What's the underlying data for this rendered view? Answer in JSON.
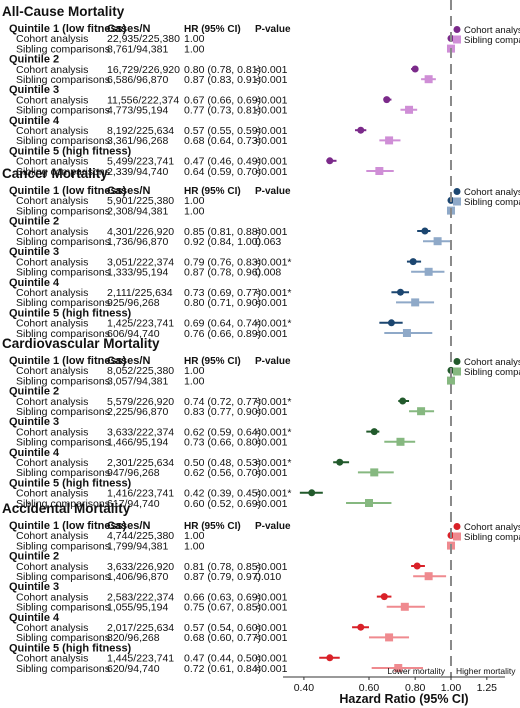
{
  "column_headers": {
    "cases": "Cases/N",
    "hr": "HR (95% CI)",
    "p": "P-value"
  },
  "legend": {
    "cohort": "Cohort analysis",
    "sibling": "Sibling comparisons"
  },
  "axis": {
    "title": "Hazard Ratio (95% CI)",
    "ticks": [
      "0.40",
      "0.60",
      "0.80",
      "1.00",
      "1.25"
    ],
    "tick_values": [
      0.4,
      0.6,
      0.8,
      1.0,
      1.25
    ],
    "xlim": [
      0.36,
      1.4
    ],
    "scale": "log",
    "left_note": "Lower mortality",
    "right_note": "Higher mortality",
    "reference_value": 1.0
  },
  "colors": {
    "All-Cause Mortality": {
      "cohort": "#7b2a8a",
      "sibling": "#cf8ed6"
    },
    "Cancer Mortality": {
      "cohort": "#1c4670",
      "sibling": "#8fa9c8"
    },
    "Cardiovascular Mortality": {
      "cohort": "#225a2c",
      "sibling": "#86b880"
    },
    "Accidental Mortality": {
      "cohort": "#d92128",
      "sibling": "#ef8a8f"
    },
    "reference_line": "#8a8a8a"
  },
  "chart_data": {
    "type": "forest",
    "xlabel": "Hazard Ratio (95% CI)",
    "panels": [
      {
        "title": "All-Cause Mortality",
        "quintiles": [
          {
            "label": "Quintile 1 (low fitness)",
            "rows": [
              {
                "analysis": "Cohort analysis",
                "cases": "22,935/225,380",
                "hr_text": "1.00",
                "p": "",
                "hr": 1.0,
                "lo": null,
                "hi": null
              },
              {
                "analysis": "Sibling comparisons",
                "cases": "8,761/94,381",
                "hr_text": "1.00",
                "p": "",
                "hr": 1.0,
                "lo": null,
                "hi": null
              }
            ]
          },
          {
            "label": "Quintile 2",
            "rows": [
              {
                "analysis": "Cohort analysis",
                "cases": "16,729/226,920",
                "hr_text": "0.80 (0.78, 0.81)",
                "p": "<0.001",
                "hr": 0.8,
                "lo": 0.78,
                "hi": 0.81
              },
              {
                "analysis": "Sibling comparisons",
                "cases": "6,586/96,870",
                "hr_text": "0.87 (0.83, 0.91)",
                "p": "<0.001",
                "hr": 0.87,
                "lo": 0.83,
                "hi": 0.91
              }
            ]
          },
          {
            "label": "Quintile 3",
            "rows": [
              {
                "analysis": "Cohort analysis",
                "cases": "11,556/222,374",
                "hr_text": "0.67 (0.66, 0.69)",
                "p": "<0.001",
                "hr": 0.67,
                "lo": 0.66,
                "hi": 0.69
              },
              {
                "analysis": "Sibling comparisons",
                "cases": "4,773/95,194",
                "hr_text": "0.77 (0.73, 0.81)",
                "p": "<0.001",
                "hr": 0.77,
                "lo": 0.73,
                "hi": 0.81
              }
            ]
          },
          {
            "label": "Quintile 4",
            "rows": [
              {
                "analysis": "Cohort analysis",
                "cases": "8,192/225,634",
                "hr_text": "0.57 (0.55, 0.59)",
                "p": "<0.001",
                "hr": 0.57,
                "lo": 0.55,
                "hi": 0.59
              },
              {
                "analysis": "Sibling comparisons",
                "cases": "3,361/96,268",
                "hr_text": "0.68 (0.64, 0.73)",
                "p": "<0.001",
                "hr": 0.68,
                "lo": 0.64,
                "hi": 0.73
              }
            ]
          },
          {
            "label": "Quintile 5  (high fitness)",
            "rows": [
              {
                "analysis": "Cohort analysis",
                "cases": "5,499/223,741",
                "hr_text": "0.47 (0.46, 0.49)",
                "p": "<0.001",
                "hr": 0.47,
                "lo": 0.46,
                "hi": 0.49
              },
              {
                "analysis": "Sibling comparisons",
                "cases": "2,339/94,740",
                "hr_text": "0.64 (0.59, 0.70)",
                "p": "<0.001",
                "hr": 0.64,
                "lo": 0.59,
                "hi": 0.7
              }
            ]
          }
        ]
      },
      {
        "title": "Cancer Mortality",
        "quintiles": [
          {
            "label": "Quintile 1 (low fitness)",
            "rows": [
              {
                "analysis": "Cohort analysis",
                "cases": "5,901/225,380",
                "hr_text": "1.00",
                "p": "",
                "hr": 1.0,
                "lo": null,
                "hi": null
              },
              {
                "analysis": "Sibling comparisons",
                "cases": "2,308/94,381",
                "hr_text": "1.00",
                "p": "",
                "hr": 1.0,
                "lo": null,
                "hi": null
              }
            ]
          },
          {
            "label": "Quintile 2",
            "rows": [
              {
                "analysis": "Cohort analysis",
                "cases": "4,301/226,920",
                "hr_text": "0.85 (0.81, 0.88)",
                "p": "<0.001",
                "hr": 0.85,
                "lo": 0.81,
                "hi": 0.88
              },
              {
                "analysis": "Sibling comparisons",
                "cases": "1,736/96,870",
                "hr_text": "0.92 (0.84, 1.00)",
                "p": "0.063",
                "hr": 0.92,
                "lo": 0.84,
                "hi": 1.0
              }
            ]
          },
          {
            "label": "Quintile 3",
            "rows": [
              {
                "analysis": "Cohort analysis",
                "cases": "3,051/222,374",
                "hr_text": "0.79 (0.76, 0.83)",
                "p": "<0.001*",
                "hr": 0.79,
                "lo": 0.76,
                "hi": 0.83
              },
              {
                "analysis": "Sibling comparisons",
                "cases": "1,333/95,194",
                "hr_text": "0.87 (0.78, 0.96)",
                "p": "0.008",
                "hr": 0.87,
                "lo": 0.78,
                "hi": 0.96
              }
            ]
          },
          {
            "label": "Quintile 4",
            "rows": [
              {
                "analysis": "Cohort analysis",
                "cases": "2,111/225,634",
                "hr_text": "0.73 (0.69, 0.77)",
                "p": "<0.001*",
                "hr": 0.73,
                "lo": 0.69,
                "hi": 0.77
              },
              {
                "analysis": "Sibling comparisons",
                "cases": "925/96,268",
                "hr_text": "0.80 (0.71, 0.90)",
                "p": "<0.001",
                "hr": 0.8,
                "lo": 0.71,
                "hi": 0.9
              }
            ]
          },
          {
            "label": "Quintile 5  (high fitness)",
            "rows": [
              {
                "analysis": "Cohort analysis",
                "cases": "1,425/223,741",
                "hr_text": "0.69 (0.64, 0.74)",
                "p": "<0.001*",
                "hr": 0.69,
                "lo": 0.64,
                "hi": 0.74
              },
              {
                "analysis": "Sibling comparisons",
                "cases": "606/94,740",
                "hr_text": "0.76 (0.66, 0.89)",
                "p": "<0.001",
                "hr": 0.76,
                "lo": 0.66,
                "hi": 0.89
              }
            ]
          }
        ]
      },
      {
        "title": "Cardiovascular Mortality",
        "quintiles": [
          {
            "label": "Quintile 1 (low fitness)",
            "rows": [
              {
                "analysis": "Cohort analysis",
                "cases": "8,052/225,380",
                "hr_text": "1.00",
                "p": "",
                "hr": 1.0,
                "lo": null,
                "hi": null
              },
              {
                "analysis": "Sibling comparisons",
                "cases": "3,057/94,381",
                "hr_text": "1.00",
                "p": "",
                "hr": 1.0,
                "lo": null,
                "hi": null
              }
            ]
          },
          {
            "label": "Quintile 2",
            "rows": [
              {
                "analysis": "Cohort analysis",
                "cases": "5,579/226,920",
                "hr_text": "0.74 (0.72, 0.77)",
                "p": "<0.001*",
                "hr": 0.74,
                "lo": 0.72,
                "hi": 0.77
              },
              {
                "analysis": "Sibling comparisons",
                "cases": "2,225/96,870",
                "hr_text": "0.83 (0.77, 0.90)",
                "p": "<0.001",
                "hr": 0.83,
                "lo": 0.77,
                "hi": 0.9
              }
            ]
          },
          {
            "label": "Quintile 3",
            "rows": [
              {
                "analysis": "Cohort analysis",
                "cases": "3,633/222,374",
                "hr_text": "0.62 (0.59, 0.64)",
                "p": "<0.001*",
                "hr": 0.62,
                "lo": 0.59,
                "hi": 0.64
              },
              {
                "analysis": "Sibling comparisons",
                "cases": "1,466/95,194",
                "hr_text": "0.73 (0.66, 0.80)",
                "p": "<0.001",
                "hr": 0.73,
                "lo": 0.66,
                "hi": 0.8
              }
            ]
          },
          {
            "label": "Quintile 4",
            "rows": [
              {
                "analysis": "Cohort analysis",
                "cases": "2,301/225,634",
                "hr_text": "0.50 (0.48, 0.53)",
                "p": "<0.001*",
                "hr": 0.5,
                "lo": 0.48,
                "hi": 0.53
              },
              {
                "analysis": "Sibling comparisons",
                "cases": "947/96,268",
                "hr_text": "0.62 (0.56, 0.70)",
                "p": "<0.001",
                "hr": 0.62,
                "lo": 0.56,
                "hi": 0.7
              }
            ]
          },
          {
            "label": "Quintile 5  (high fitness)",
            "rows": [
              {
                "analysis": "Cohort analysis",
                "cases": "1,416/223,741",
                "hr_text": "0.42 (0.39, 0.45)",
                "p": "<0.001*",
                "hr": 0.42,
                "lo": 0.39,
                "hi": 0.45
              },
              {
                "analysis": "Sibling comparisons",
                "cases": "617/94,740",
                "hr_text": "0.60 (0.52, 0.69)",
                "p": "<0.001",
                "hr": 0.6,
                "lo": 0.52,
                "hi": 0.69
              }
            ]
          }
        ]
      },
      {
        "title": "Accidental Mortality",
        "quintiles": [
          {
            "label": "Quintile 1 (low fitness)",
            "rows": [
              {
                "analysis": "Cohort analysis",
                "cases": "4,744/225,380",
                "hr_text": "1.00",
                "p": "",
                "hr": 1.0,
                "lo": null,
                "hi": null
              },
              {
                "analysis": "Sibling comparisons",
                "cases": "1,799/94,381",
                "hr_text": "1.00",
                "p": "",
                "hr": 1.0,
                "lo": null,
                "hi": null
              }
            ]
          },
          {
            "label": "Quintile 2",
            "rows": [
              {
                "analysis": "Cohort analysis",
                "cases": "3,633/226,920",
                "hr_text": "0.81 (0.78, 0.85)",
                "p": "<0.001",
                "hr": 0.81,
                "lo": 0.78,
                "hi": 0.85
              },
              {
                "analysis": "Sibling comparisons",
                "cases": "1,406/96,870",
                "hr_text": "0.87 (0.79, 0.97)",
                "p": "0.010",
                "hr": 0.87,
                "lo": 0.79,
                "hi": 0.97
              }
            ]
          },
          {
            "label": "Quintile 3",
            "rows": [
              {
                "analysis": "Cohort analysis",
                "cases": "2,583/222,374",
                "hr_text": "0.66 (0.63, 0.69)",
                "p": "<0.001",
                "hr": 0.66,
                "lo": 0.63,
                "hi": 0.69
              },
              {
                "analysis": "Sibling comparisons",
                "cases": "1,055/95,194",
                "hr_text": "0.75 (0.67, 0.85)",
                "p": "<0.001",
                "hr": 0.75,
                "lo": 0.67,
                "hi": 0.85
              }
            ]
          },
          {
            "label": "Quintile 4",
            "rows": [
              {
                "analysis": "Cohort analysis",
                "cases": "2,017/225,634",
                "hr_text": "0.57 (0.54, 0.60)",
                "p": "<0.001",
                "hr": 0.57,
                "lo": 0.54,
                "hi": 0.6
              },
              {
                "analysis": "Sibling comparisons",
                "cases": "820/96,268",
                "hr_text": "0.68 (0.60, 0.77)",
                "p": "<0.001",
                "hr": 0.68,
                "lo": 0.6,
                "hi": 0.77
              }
            ]
          },
          {
            "label": "Quintile 5 (high fitness)",
            "rows": [
              {
                "analysis": "Cohort analysis",
                "cases": "1,445/223,741",
                "hr_text": "0.47 (0.44, 0.50)",
                "p": "<0.001",
                "hr": 0.47,
                "lo": 0.44,
                "hi": 0.5
              },
              {
                "analysis": "Sibling comparisons",
                "cases": "620/94,740",
                "hr_text": "0.72 (0.61, 0.84)",
                "p": "<0.001",
                "hr": 0.72,
                "lo": 0.61,
                "hi": 0.84
              }
            ]
          }
        ]
      }
    ]
  }
}
